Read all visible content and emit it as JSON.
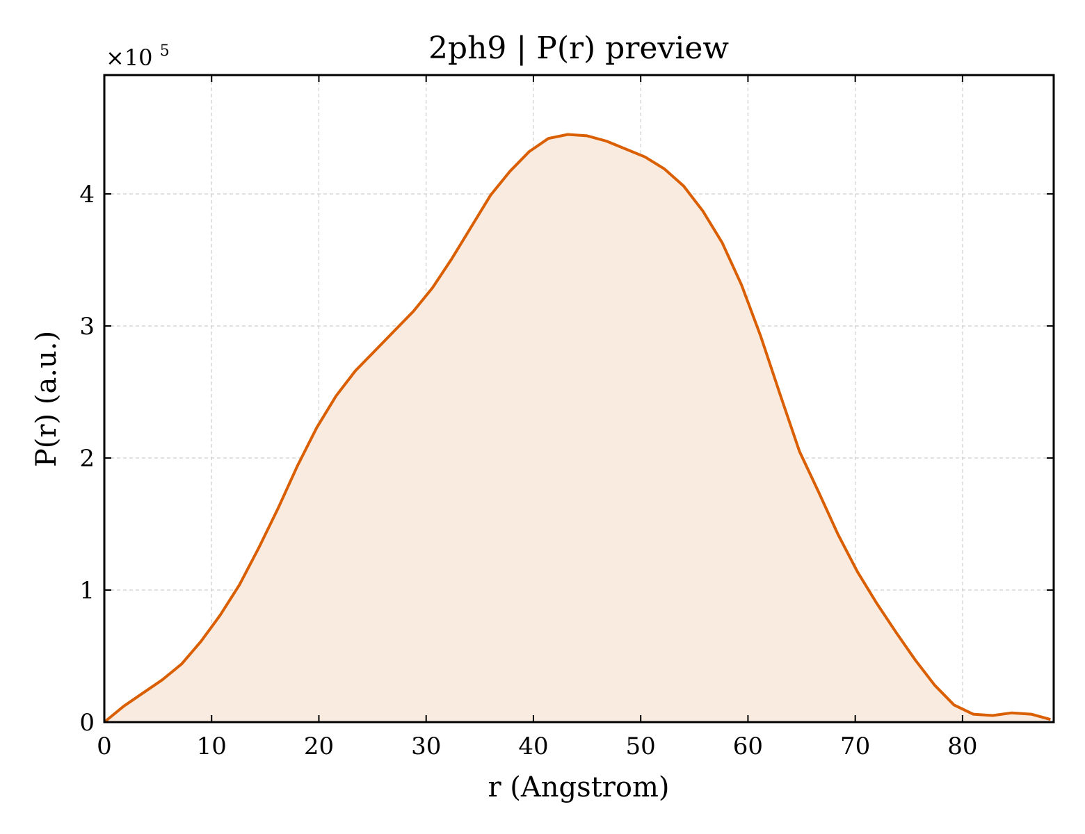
{
  "chart_data": {
    "type": "area",
    "title": "2ph9 | P(r) preview",
    "xlabel": "r (Angstrom)",
    "ylabel": "P(r) (a.u.)",
    "y_multiplier_base": "×10",
    "y_multiplier_exp": "5",
    "xlim": [
      0,
      88.5
    ],
    "ylim": [
      0,
      4.9
    ],
    "x_ticks": [
      0,
      10,
      20,
      30,
      40,
      50,
      60,
      70,
      80
    ],
    "y_ticks": [
      0,
      1,
      2,
      3,
      4
    ],
    "grid": true,
    "colors": {
      "line": "#d95f02",
      "fill": "#f9ebe0"
    },
    "series": [
      {
        "x": [
          0,
          1.8,
          3.6,
          5.4,
          7.2,
          9.0,
          10.8,
          12.6,
          14.4,
          16.2,
          18.0,
          19.8,
          21.6,
          23.4,
          25.2,
          27.0,
          28.8,
          30.6,
          32.4,
          34.2,
          36.0,
          37.8,
          39.6,
          41.4,
          43.2,
          45.0,
          46.8,
          48.6,
          50.4,
          52.2,
          54.0,
          55.8,
          57.6,
          59.4,
          61.2,
          63.0,
          64.8,
          66.6,
          68.4,
          70.2,
          72.0,
          73.8,
          75.6,
          77.4,
          79.2,
          81.0,
          82.8,
          84.6,
          86.4,
          88.2
        ],
        "y": [
          0.0,
          0.12,
          0.22,
          0.32,
          0.44,
          0.61,
          0.81,
          1.04,
          1.32,
          1.62,
          1.94,
          2.23,
          2.47,
          2.66,
          2.81,
          2.96,
          3.11,
          3.29,
          3.51,
          3.75,
          3.99,
          4.17,
          4.32,
          4.42,
          4.45,
          4.44,
          4.4,
          4.34,
          4.28,
          4.19,
          4.06,
          3.87,
          3.63,
          3.31,
          2.92,
          2.48,
          2.05,
          1.74,
          1.42,
          1.14,
          0.9,
          0.68,
          0.47,
          0.28,
          0.13,
          0.06,
          0.05,
          0.07,
          0.06,
          0.02
        ]
      }
    ]
  }
}
